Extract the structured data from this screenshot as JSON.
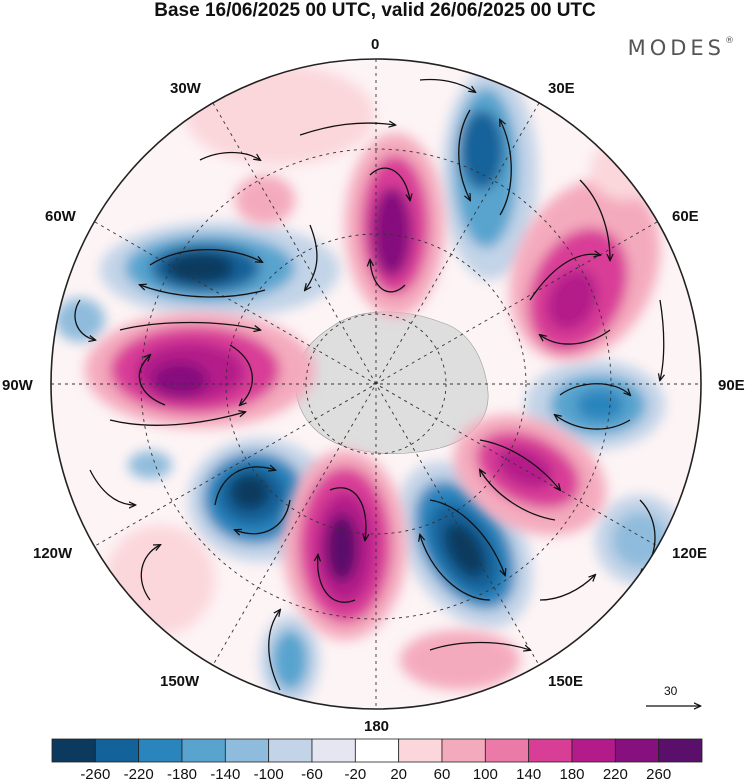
{
  "title": "Base 16/06/2025 00 UTC, valid 26/06/2025 00 UTC",
  "brand": "MODES",
  "brand_mark": "®",
  "lon_labels": {
    "l0": "0",
    "l30e": "30E",
    "l60e": "60E",
    "l90e": "90E",
    "l120e": "120E",
    "l150e": "150E",
    "l180": "180",
    "l150w": "150W",
    "l120w": "120W",
    "l90w": "90W",
    "l60w": "60W",
    "l30w": "30W"
  },
  "reference_vector": "30",
  "colorbar": {
    "ticks": [
      "-260",
      "-220",
      "-180",
      "-140",
      "-100",
      "-60",
      "-20",
      "20",
      "60",
      "100",
      "140",
      "180",
      "220",
      "260"
    ],
    "colors": [
      "#0b3a5e",
      "#13629a",
      "#2b85bd",
      "#58a4cf",
      "#8fbcdc",
      "#c3d4e8",
      "#e6e6f3",
      "#ffffff",
      "#fbd7dc",
      "#f4aabd",
      "#ec7aa9",
      "#d93e97",
      "#b41b8a",
      "#86117e",
      "#5a0f6b"
    ]
  },
  "colors": {
    "land": "#d9d9d9",
    "frame": "#222222"
  }
}
